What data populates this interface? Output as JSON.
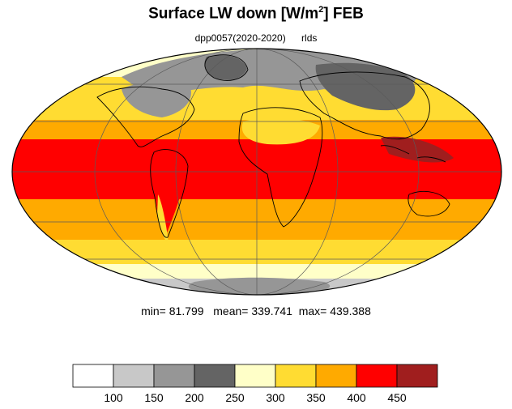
{
  "title": {
    "main": "Surface LW down [W/m",
    "superscript": "2",
    "suffix": "]  FEB"
  },
  "subtitle": {
    "experiment": "dpp0057(2020-2020)",
    "variable": "rlds"
  },
  "stats": {
    "min_label": "min=",
    "min": "81.799",
    "mean_label": "mean=",
    "mean": "339.741",
    "max_label": "max=",
    "max": "439.388"
  },
  "colorbar": {
    "tick_labels": [
      "100",
      "150",
      "200",
      "250",
      "300",
      "350",
      "400",
      "450"
    ],
    "colors": [
      "#ffffff",
      "#c8c8c8",
      "#969696",
      "#646464",
      "#ffffc8",
      "#ffdc32",
      "#ffaa00",
      "#ff0000",
      "#a01e1e"
    ]
  },
  "map_colors": {
    "ocean_land_outline": "#000000",
    "graticule": "#5a5a5a"
  }
}
